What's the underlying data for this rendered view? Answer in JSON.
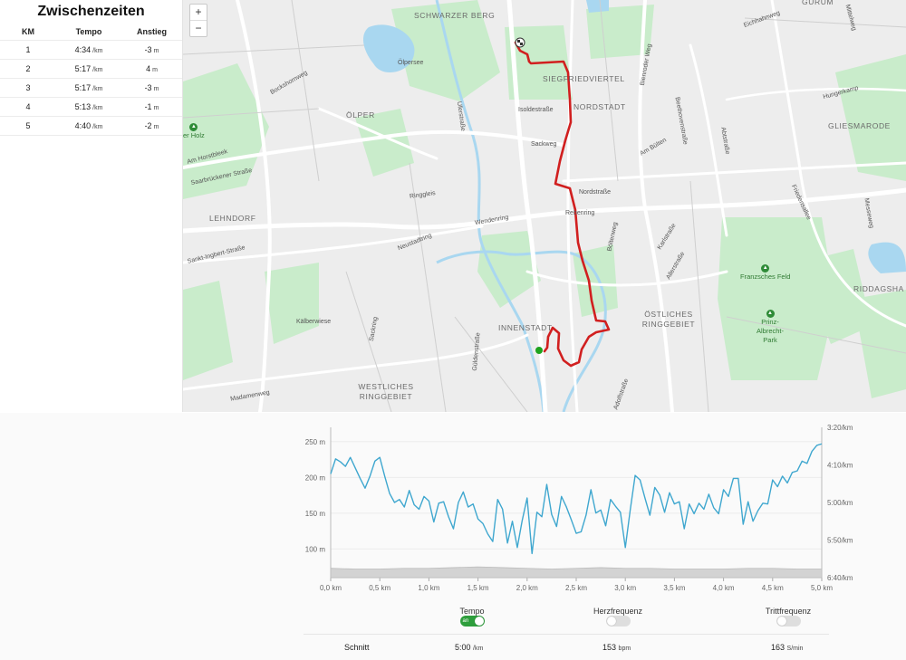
{
  "splits": {
    "title": "Zwischenzeiten",
    "headers": {
      "km": "KM",
      "pace": "Tempo",
      "elev": "Anstieg"
    },
    "rows": [
      {
        "km": "1",
        "pace": "4:34",
        "pace_unit": "/km",
        "elev": "-3",
        "elev_unit": "m"
      },
      {
        "km": "2",
        "pace": "5:17",
        "pace_unit": "/km",
        "elev": "4",
        "elev_unit": "m"
      },
      {
        "km": "3",
        "pace": "5:17",
        "pace_unit": "/km",
        "elev": "-3",
        "elev_unit": "m"
      },
      {
        "km": "4",
        "pace": "5:13",
        "pace_unit": "/km",
        "elev": "-1",
        "elev_unit": "m"
      },
      {
        "km": "5",
        "pace": "4:40",
        "pace_unit": "/km",
        "elev": "-2",
        "elev_unit": "m"
      }
    ]
  },
  "map": {
    "zoom_in": "+",
    "zoom_out": "−",
    "districts": [
      "SCHWARZER BERG",
      "SIEGFRIEDVIERTEL",
      "NORDSTADT",
      "ÖLPER",
      "GLIESMARODE",
      "LEHNDORF",
      "INNENSTADT",
      "ÖSTLICHES RINGGEBIET",
      "WESTLICHES RINGGEBIET",
      "RIDDAGSHA",
      "GÜRUM"
    ],
    "streets": [
      "Ölpersee",
      "Bockshornweg",
      "Isoldestraße",
      "Sackweg",
      "Ringgleis",
      "Wendenring",
      "Neustadtring",
      "Am Horstbleek",
      "Saarbrückener Straße",
      "Sankt-Ingbert-Straße",
      "Kälberwiese",
      "Sackring",
      "Güldenstraße",
      "Madamenweg",
      "Nordstraße",
      "Rebenring",
      "Böltenweg",
      "Karlstraße",
      "Am Bülten",
      "Abtstraße",
      "Beethovenstraße",
      "Bienroder Weg",
      "Eichhahnweg",
      "Hungerkamp",
      "Friedensallee",
      "Messeweg",
      "Mittelweg",
      "Uferstraße",
      "Adolfstraße",
      "Allerstraße"
    ],
    "parks": [
      "er Holz",
      "Franzsches Feld",
      "Prinz-Albrecht-Park"
    ]
  },
  "route_icons": {
    "start": "start-dot-icon",
    "finish": "checkered-flag-icon"
  },
  "chart_data": {
    "type": "line",
    "x_label_ticks": [
      "0,0 km",
      "0,5 km",
      "1,0 km",
      "1,5 km",
      "2,0 km",
      "2,5 km",
      "3,0 km",
      "3,5 km",
      "4,0 km",
      "4,5 km",
      "5,0 km"
    ],
    "xlim": [
      0,
      5.0
    ],
    "left_axis": {
      "ticks": [
        "250 m",
        "200 m",
        "150 m",
        "100 m"
      ],
      "values": [
        250,
        200,
        150,
        100
      ],
      "range": [
        60,
        270
      ]
    },
    "right_axis": {
      "ticks": [
        "3:20/km",
        "4:10/km",
        "5:00/km",
        "5:50/km",
        "6:40/km"
      ],
      "values_sec": [
        200,
        250,
        300,
        350,
        400
      ]
    },
    "series": [
      {
        "key": "pace",
        "color": "#3fa7cf",
        "x": [
          0.0,
          0.05,
          0.1,
          0.15,
          0.2,
          0.25,
          0.3,
          0.35,
          0.4,
          0.45,
          0.5,
          0.55,
          0.6,
          0.65,
          0.7,
          0.75,
          0.8,
          0.85,
          0.9,
          0.95,
          1.0,
          1.05,
          1.1,
          1.15,
          1.2,
          1.25,
          1.3,
          1.35,
          1.4,
          1.45,
          1.5,
          1.55,
          1.6,
          1.65,
          1.7,
          1.75,
          1.8,
          1.85,
          1.9,
          1.95,
          2.0,
          2.05,
          2.1,
          2.15,
          2.2,
          2.25,
          2.3,
          2.35,
          2.4,
          2.45,
          2.5,
          2.55,
          2.6,
          2.65,
          2.7,
          2.75,
          2.8,
          2.85,
          2.9,
          2.95,
          3.0,
          3.05,
          3.1,
          3.15,
          3.2,
          3.25,
          3.3,
          3.35,
          3.4,
          3.45,
          3.5,
          3.55,
          3.6,
          3.65,
          3.7,
          3.75,
          3.8,
          3.85,
          3.9,
          3.95,
          4.0,
          4.05,
          4.1,
          4.15,
          4.2,
          4.25,
          4.3,
          4.35,
          4.4,
          4.45,
          4.5,
          4.55,
          4.6,
          4.65,
          4.7,
          4.75,
          4.8,
          4.85,
          4.9,
          4.95,
          5.0
        ],
        "y_sec": [
          262,
          242,
          246,
          252,
          240,
          254,
          268,
          281,
          265,
          245,
          240,
          265,
          288,
          300,
          296,
          306,
          284,
          303,
          309,
          292,
          298,
          326,
          301,
          299,
          319,
          335,
          300,
          286,
          306,
          302,
          322,
          328,
          342,
          352,
          296,
          309,
          354,
          325,
          360,
          324,
          294,
          368,
          313,
          319,
          276,
          316,
          332,
          292,
          306,
          323,
          341,
          339,
          317,
          283,
          314,
          310,
          331,
          296,
          305,
          313,
          360,
          310,
          264,
          270,
          294,
          317,
          280,
          290,
          313,
          287,
          302,
          299,
          335,
          302,
          315,
          301,
          309,
          289,
          307,
          315,
          283,
          292,
          268,
          268,
          329,
          299,
          325,
          311,
          301,
          302,
          270,
          279,
          265,
          274,
          260,
          258,
          245,
          248,
          232,
          224,
          222
        ]
      },
      {
        "key": "elevation",
        "color": "#d3d3d3",
        "x": [
          0.0,
          0.25,
          0.5,
          0.75,
          1.0,
          1.25,
          1.5,
          1.75,
          2.0,
          2.25,
          2.5,
          2.75,
          3.0,
          3.25,
          3.5,
          3.75,
          4.0,
          4.25,
          4.5,
          4.75,
          5.0
        ],
        "y_m": [
          73,
          72,
          72,
          73,
          73,
          74,
          75,
          74,
          73,
          72,
          73,
          74,
          73,
          73,
          72,
          72,
          72,
          73,
          73,
          72,
          72
        ]
      }
    ]
  },
  "toggles": [
    {
      "label": "Tempo",
      "state": "an"
    },
    {
      "label": "Herzfrequenz",
      "state": ""
    },
    {
      "label": "Trittfrequenz",
      "state": ""
    }
  ],
  "averages": {
    "label": "Schnitt",
    "pace": "5:00",
    "pace_unit": "/km",
    "hr": "153",
    "hr_unit": "bpm",
    "cadence": "163",
    "cadence_unit": "S/min"
  },
  "colors": {
    "route": "#d11f1f",
    "start": "#1ea31e",
    "pace_line": "#3fa7cf",
    "toggle_on": "#2e9e3c",
    "park": "#c5ecc5",
    "water": "#a9d7f0"
  }
}
